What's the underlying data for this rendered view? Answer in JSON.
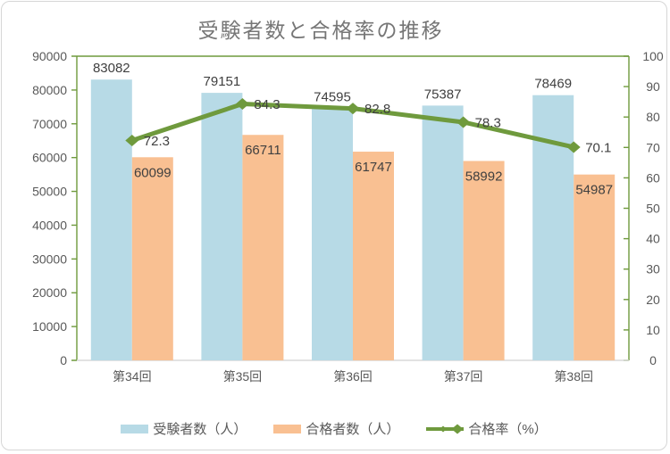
{
  "chart_data": {
    "type": "bar",
    "title": "受験者数と合格率の推移",
    "categories": [
      "第34回",
      "第35回",
      "第36回",
      "第37回",
      "第38回"
    ],
    "series": [
      {
        "id": "examinees",
        "name": "受験者数（人）",
        "type": "bar",
        "axis": "left",
        "color": "#b7dae6",
        "values": [
          83082,
          79151,
          74595,
          75387,
          78469
        ],
        "label_position": "outside-end"
      },
      {
        "id": "passers",
        "name": "合格者数（人）",
        "type": "bar",
        "axis": "left",
        "color": "#f9c092",
        "values": [
          60099,
          66711,
          61747,
          58992,
          54987
        ],
        "label_position": "inside-end"
      },
      {
        "id": "pass-rate",
        "name": "合格率（%）",
        "type": "line",
        "axis": "right",
        "color": "#6f9a3d",
        "values": [
          72.3,
          84.3,
          82.8,
          78.3,
          70.1
        ],
        "label_position": "right-of-marker",
        "marker": "diamond"
      }
    ],
    "left_axis": {
      "min": 0,
      "max": 90000,
      "step": 10000
    },
    "right_axis": {
      "min": 0,
      "max": 100,
      "step": 10
    },
    "grid": false,
    "legend_position": "bottom",
    "colors": {
      "value_axis_line": "#6f9a3d",
      "category_axis_line": "#d9d9d9",
      "axis_text": "#595959",
      "data_label_text": "#404040",
      "title_text": "#767676",
      "frame_border": "#d6d6d6"
    }
  }
}
